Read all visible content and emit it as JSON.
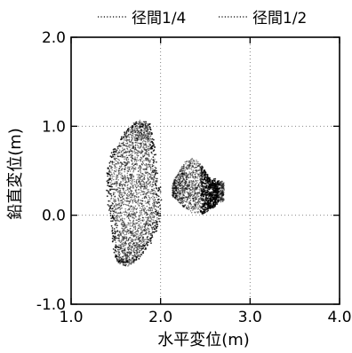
{
  "chart_data": {
    "type": "scatter",
    "title": "",
    "xlabel": "水平変位(m)",
    "ylabel": "鉛直変位(m)",
    "xlim": [
      1.0,
      4.0
    ],
    "ylim": [
      -1.0,
      2.0
    ],
    "x_ticks": [
      1.0,
      2.0,
      3.0,
      4.0
    ],
    "y_ticks": [
      -1.0,
      0.0,
      1.0,
      2.0
    ],
    "x_tick_labels": [
      "1.0",
      "2.0",
      "3.0",
      "4.0"
    ],
    "y_tick_labels": [
      "-1.0",
      "0.0",
      "1.0",
      "2.0"
    ],
    "grid": "dotted",
    "legend_position": "top",
    "series": [
      {
        "name": "径間1/4",
        "style": "dotted",
        "color": "#000000",
        "region": {
          "x_range": [
            1.5,
            2.1
          ],
          "y_range": [
            -0.55,
            1.05
          ]
        }
      },
      {
        "name": "径間1/2",
        "style": "dotted",
        "color": "#000000",
        "region": {
          "x_range": [
            2.1,
            2.72
          ],
          "y_range": [
            0.0,
            0.65
          ]
        }
      }
    ]
  }
}
